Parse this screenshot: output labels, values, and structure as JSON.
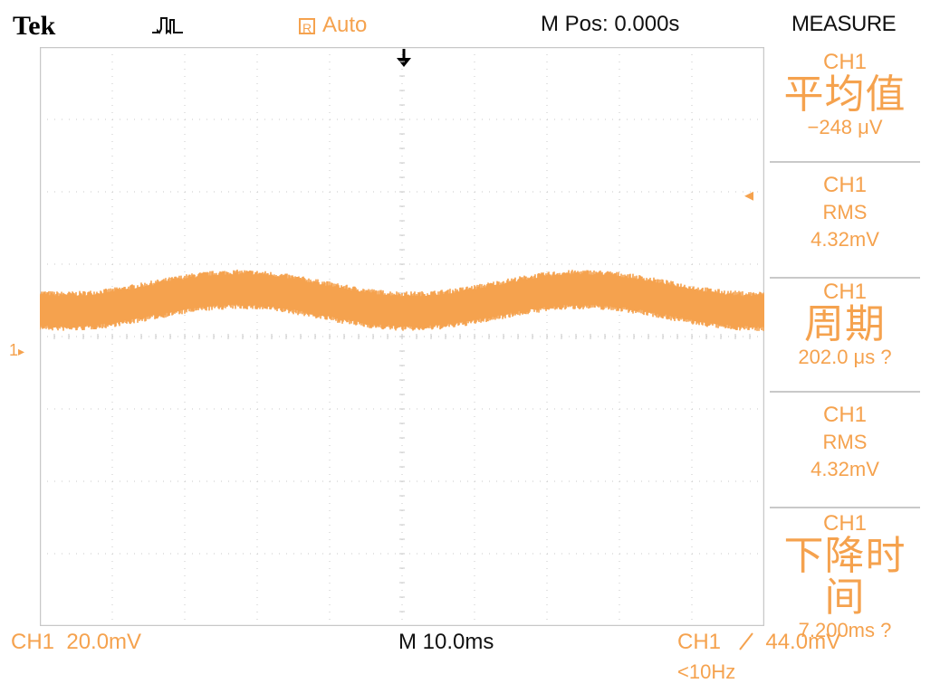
{
  "header": {
    "brand": "Tek",
    "acquisition_icon": "acquisition-mode-icon",
    "trigger_box_letter": "R",
    "trigger_status": "Auto",
    "horizontal_position": "M Pos: 0.000s",
    "menu_title": "MEASURE"
  },
  "measurements": [
    {
      "source": "CH1",
      "type": "平均值",
      "value": "−248 μV"
    },
    {
      "source": "CH1",
      "type": "RMS",
      "value": "4.32mV"
    },
    {
      "source": "CH1",
      "type": "周期",
      "value": "202.0 μs ?"
    },
    {
      "source": "CH1",
      "type": "RMS",
      "value": "4.32mV"
    },
    {
      "source": "CH1",
      "type": "下降时间",
      "value": "7.200ms ?"
    }
  ],
  "markers": {
    "channel_marker_label": "1",
    "channel_marker_arrow": "▸",
    "trigger_position_icon": "trigger-position-arrow-icon",
    "trigger_level_icon": "◂"
  },
  "footer": {
    "channel_scale": "CH1  20.0mV",
    "timebase": "M 10.0ms",
    "trigger_source": "CH1",
    "trigger_slope_icon": "rising-edge-icon",
    "trigger_level": "44.0mV",
    "trigger_frequency": "<10Hz"
  },
  "colors": {
    "channel1": "#f5a24e",
    "grid": "#c8c8c8",
    "text": "#111111",
    "background": "#ffffff"
  },
  "waveform": {
    "channel": "CH1",
    "baseline_divisions_above_center": 0.5,
    "noise_peak_to_peak_divisions": 0.55,
    "low_frequency_wander_divisions": 0.15
  }
}
